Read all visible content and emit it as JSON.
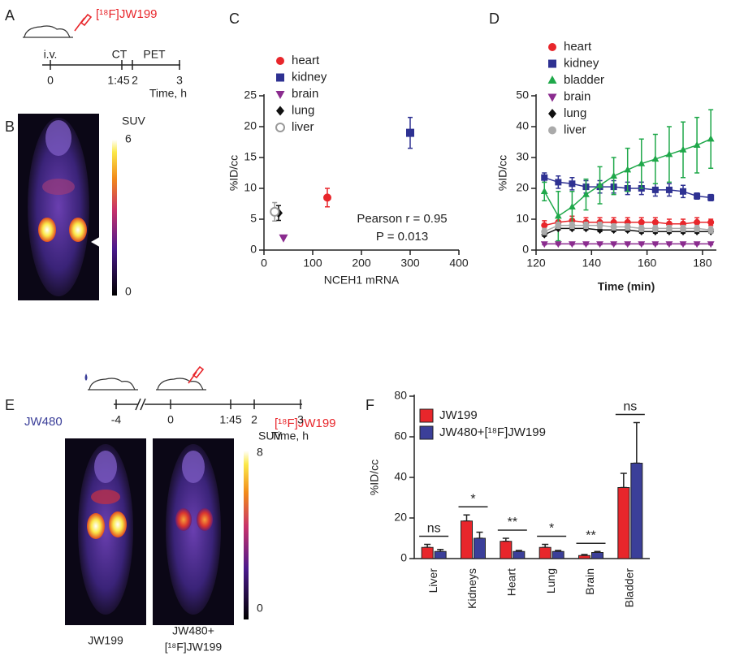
{
  "letters": [
    "A",
    "B",
    "C",
    "D",
    "E",
    "F"
  ],
  "panels": {
    "A": {
      "tracer": "[¹⁸F]JW199",
      "events": [
        "i.v.",
        "CT",
        "PET"
      ],
      "ticks": [
        "0",
        "1:45",
        "2",
        "3"
      ],
      "axis_label": "Time, h"
    },
    "B": {
      "colorbar_title": "SUV",
      "colorbar_max": 6,
      "colorbar_min": 0
    },
    "E": {
      "pretreatment": "JW480",
      "tracer": "[¹⁸F]JW199",
      "ticks": [
        "-4",
        "0",
        "1:45",
        "2",
        "3"
      ],
      "axis_label": "Time, h",
      "colorbar_title": "SUV",
      "colorbar_max": 8,
      "colorbar_min": 0,
      "image_labels": [
        "JW199",
        "JW480+",
        "[¹⁸F]JW199"
      ]
    }
  },
  "chart_data": [
    {
      "type": "scatter",
      "x_label": "NCEH1 mRNA",
      "y_label": "%ID/cc",
      "xlim": [
        0,
        400
      ],
      "xticks": [
        0,
        100,
        200,
        300,
        400
      ],
      "ylim": [
        0,
        25
      ],
      "yticks": [
        0,
        5,
        10,
        15,
        20,
        25
      ],
      "annotations": [
        "Pearson r = 0.95",
        "P = 0.013"
      ],
      "series": [
        {
          "name": "heart",
          "color": "#e8262b",
          "marker": "circle",
          "x": [
            130
          ],
          "values": [
            8.5
          ],
          "errors": [
            1.5
          ]
        },
        {
          "name": "kidney",
          "color": "#2e3192",
          "marker": "square",
          "x": [
            300
          ],
          "values": [
            19
          ],
          "errors": [
            2.5
          ]
        },
        {
          "name": "brain",
          "color": "#8b2c8f",
          "marker": "triangle-down",
          "x": [
            40
          ],
          "values": [
            2
          ]
        },
        {
          "name": "lung",
          "color": "#111111",
          "marker": "diamond",
          "x": [
            30
          ],
          "values": [
            6
          ],
          "errors": [
            1.2
          ]
        },
        {
          "name": "liver",
          "color": "#999999",
          "marker": "circle-open",
          "x": [
            22
          ],
          "values": [
            6.2
          ],
          "errors": [
            1.5
          ]
        }
      ]
    },
    {
      "type": "line",
      "x_label": "Time (min)",
      "y_label": "%ID/cc",
      "xlim": [
        120,
        185
      ],
      "xticks": [
        120,
        140,
        160,
        180
      ],
      "ylim": [
        0,
        50
      ],
      "yticks": [
        0,
        10,
        20,
        30,
        40,
        50
      ],
      "x": [
        123,
        128,
        133,
        138,
        143,
        148,
        153,
        158,
        163,
        168,
        173,
        178,
        183
      ],
      "series": [
        {
          "name": "heart",
          "color": "#e8262b",
          "marker": "circle",
          "values": [
            8,
            9,
            9.5,
            9,
            9,
            9,
            9,
            9,
            9,
            8.5,
            8.5,
            9,
            9
          ],
          "errors": [
            1.5,
            1.5,
            1.5,
            1.5,
            1.5,
            1.5,
            1.5,
            1.5,
            1.5,
            1.5,
            1.5,
            1.5,
            1
          ]
        },
        {
          "name": "kidney",
          "color": "#2e3192",
          "marker": "square",
          "values": [
            23.5,
            22,
            21.5,
            20.5,
            20.5,
            20.5,
            20,
            20,
            19.5,
            19.5,
            19,
            17.5,
            17
          ],
          "errors": [
            1.5,
            2,
            2,
            2,
            2,
            2,
            2,
            2,
            2,
            2,
            2,
            1,
            1
          ]
        },
        {
          "name": "bladder",
          "color": "#1fa84a",
          "marker": "triangle-up",
          "values": [
            19,
            11,
            14,
            18,
            21,
            24,
            26,
            28,
            29.5,
            31,
            32.5,
            34,
            36
          ],
          "errors": [
            3,
            8,
            5,
            5,
            6,
            6,
            7,
            8,
            8,
            9,
            9,
            9,
            9.5
          ]
        },
        {
          "name": "brain",
          "color": "#8b2c8f",
          "marker": "triangle-down",
          "values": [
            2,
            2,
            2,
            2,
            2,
            2,
            2,
            2,
            2,
            2,
            2,
            2,
            2
          ],
          "errors": [
            0.3,
            0.3,
            0.3,
            0.3,
            0.3,
            0.3,
            0.3,
            0.3,
            0.3,
            0.3,
            0.3,
            0.3,
            0.3
          ]
        },
        {
          "name": "lung",
          "color": "#111111",
          "marker": "diamond",
          "values": [
            5,
            7,
            7,
            7,
            6.5,
            6.5,
            6.5,
            6,
            6,
            6,
            6,
            6,
            6
          ],
          "errors": [
            0.5,
            0.5,
            0.5,
            0.5,
            0.5,
            0.5,
            0.5,
            0.5,
            0.5,
            0.5,
            0.5,
            0.5,
            0.5
          ]
        },
        {
          "name": "liver",
          "color": "#aaaaaa",
          "marker": "circle",
          "values": [
            6,
            8,
            8,
            8,
            8,
            7.5,
            7.5,
            7,
            7,
            7,
            7,
            7,
            6.5
          ],
          "errors": [
            1,
            1,
            1,
            1,
            1,
            1,
            1,
            1,
            1,
            1,
            1,
            1,
            1
          ]
        }
      ]
    },
    {
      "type": "bar",
      "y_label": "%ID/cc",
      "categories": [
        "Liver",
        "Kidneys",
        "Heart",
        "Lung",
        "Brain",
        "Bladder"
      ],
      "ylim": [
        0,
        80
      ],
      "yticks": [
        0,
        20,
        40,
        60,
        80
      ],
      "significance": [
        "ns",
        "*",
        "**",
        "*",
        "**",
        "ns"
      ],
      "series": [
        {
          "name": "JW199",
          "color": "#e8262b",
          "values": [
            5.5,
            18.5,
            8.5,
            5.5,
            1.5,
            35
          ],
          "errors": [
            1.5,
            3,
            1.5,
            1.5,
            0.5,
            7
          ]
        },
        {
          "name": "JW480+[¹⁸F]JW199",
          "color": "#3b3f99",
          "values": [
            3.5,
            10,
            3.5,
            3.5,
            3,
            47
          ],
          "errors": [
            1,
            3,
            0.5,
            0.5,
            0.5,
            20
          ]
        }
      ]
    }
  ]
}
